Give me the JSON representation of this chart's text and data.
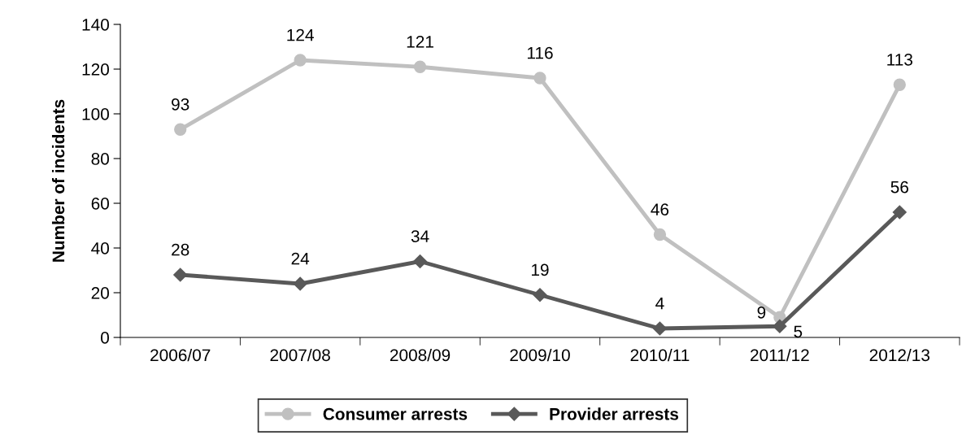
{
  "chart_data": {
    "type": "line",
    "ylabel": "Number of incidents",
    "categories": [
      "2006/07",
      "2007/08",
      "2008/09",
      "2009/10",
      "2010/11",
      "2011/12",
      "2012/13"
    ],
    "series": [
      {
        "name": "Consumer arrests",
        "color": "#c0c0c0",
        "marker": "circle",
        "values": [
          93,
          124,
          121,
          116,
          46,
          9,
          113
        ]
      },
      {
        "name": "Provider arrests",
        "color": "#595959",
        "marker": "diamond",
        "values": [
          28,
          24,
          34,
          19,
          4,
          5,
          56
        ]
      }
    ],
    "ylim": [
      0,
      140
    ],
    "yticks": [
      0,
      20,
      40,
      60,
      80,
      100,
      120,
      140
    ],
    "data_labels": true,
    "grid": false,
    "legend": "bottom",
    "line_style": "solid"
  }
}
